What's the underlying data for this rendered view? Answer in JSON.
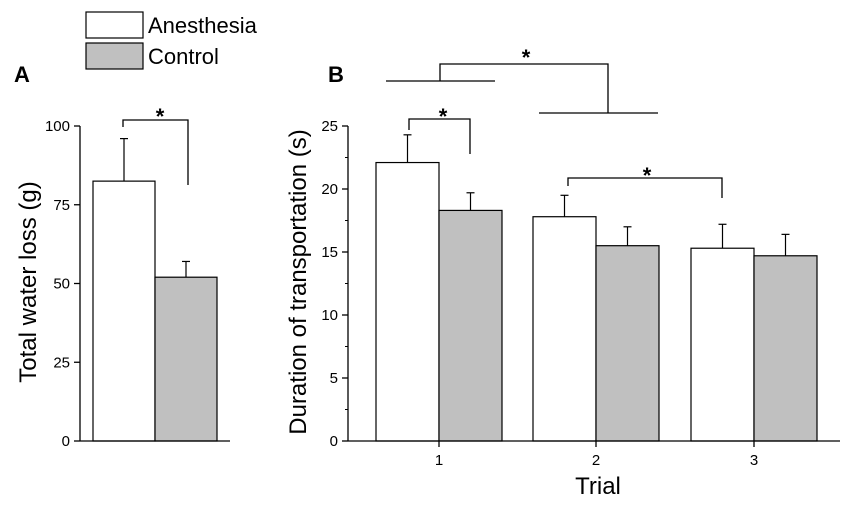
{
  "legend": {
    "entries": [
      {
        "label": "Anesthesia",
        "color": "#ffffff"
      },
      {
        "label": "Control",
        "color": "#c0c0c0"
      }
    ]
  },
  "chart_data": [
    {
      "panel": "A",
      "type": "bar",
      "ylabel": "Total water loss (g)",
      "xlabel": "",
      "ylim": [
        0,
        100
      ],
      "yticks": [
        "0",
        "25",
        "50",
        "75",
        "100"
      ],
      "series": [
        {
          "name": "Anesthesia",
          "color": "#ffffff",
          "value": 82.5,
          "error": 13.5
        },
        {
          "name": "Control",
          "color": "#c0c0c0",
          "value": 52,
          "error": 5
        }
      ],
      "annotations": [
        {
          "text": "*",
          "between": [
            "Anesthesia",
            "Control"
          ]
        }
      ]
    },
    {
      "panel": "B",
      "type": "bar",
      "ylabel": "Duration of transportation (s)",
      "xlabel": "Trial",
      "ylim": [
        0,
        25
      ],
      "yticks": [
        "0",
        "5",
        "10",
        "15",
        "20",
        "25"
      ],
      "categories": [
        "1",
        "2",
        "3"
      ],
      "series": [
        {
          "name": "Anesthesia",
          "color": "#ffffff",
          "values": [
            22.1,
            17.8,
            15.3
          ],
          "errors": [
            2.2,
            1.7,
            1.9
          ]
        },
        {
          "name": "Control",
          "color": "#c0c0c0",
          "values": [
            18.3,
            15.5,
            14.7
          ],
          "errors": [
            1.4,
            1.5,
            1.7
          ]
        }
      ],
      "annotations": [
        {
          "text": "*",
          "between": [
            "Trial 1 Anesthesia",
            "Trial 1 Control"
          ]
        },
        {
          "text": "*",
          "between": [
            "Trial 2 Anesthesia",
            "Trial 3 Anesthesia"
          ]
        },
        {
          "text": "*",
          "between": [
            "Trial 1",
            "Trials 2-3"
          ]
        }
      ]
    }
  ]
}
